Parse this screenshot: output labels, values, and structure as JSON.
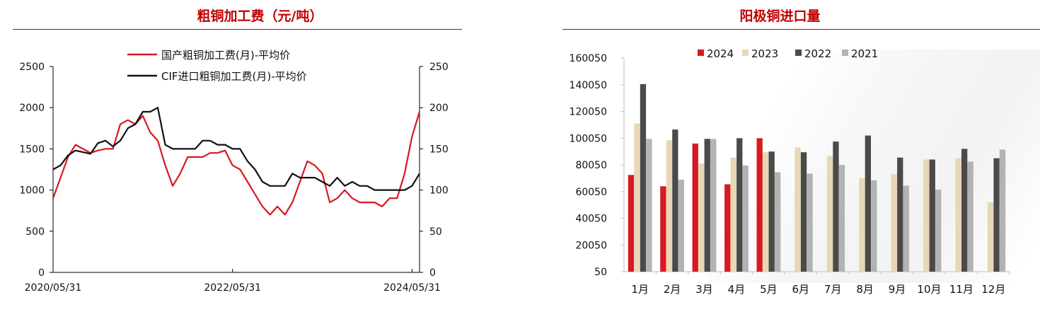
{
  "left": {
    "title": "粗铜加工费（元/吨）",
    "legend": [
      "国产粗铜加工费(月)-平均价",
      "CIF进口粗铜加工费(月)-平均价"
    ],
    "colors": {
      "domestic": "#d71920",
      "cif": "#111111"
    }
  },
  "right": {
    "title": "阳极铜进口量",
    "colors": {
      "2024": "#d71920",
      "2023": "#e8d7b5",
      "2022": "#4a4a4a",
      "2021": "#b3b3b3"
    }
  },
  "chart_data": [
    {
      "type": "line",
      "title": "粗铜加工费（元/吨）",
      "xlabels": [
        "2020/05/31",
        "2022/05/31",
        "2024/05/31"
      ],
      "x": [
        "2020/05",
        "2020/06",
        "2020/07",
        "2020/08",
        "2020/09",
        "2020/10",
        "2020/11",
        "2020/12",
        "2021/01",
        "2021/02",
        "2021/03",
        "2021/04",
        "2021/05",
        "2021/06",
        "2021/07",
        "2021/08",
        "2021/09",
        "2021/10",
        "2021/11",
        "2021/12",
        "2022/01",
        "2022/02",
        "2022/03",
        "2022/04",
        "2022/05",
        "2022/06",
        "2022/07",
        "2022/08",
        "2022/09",
        "2022/10",
        "2022/11",
        "2022/12",
        "2023/01",
        "2023/02",
        "2023/03",
        "2023/04",
        "2023/05",
        "2023/06",
        "2023/07",
        "2023/08",
        "2023/09",
        "2023/10",
        "2023/11",
        "2023/12",
        "2024/01",
        "2024/02",
        "2024/03",
        "2024/04",
        "2024/05",
        "2024/06"
      ],
      "ylim_left": [
        0,
        2500
      ],
      "yticks_left": [
        0,
        500,
        1000,
        1500,
        2000,
        2500
      ],
      "ylim_right": [
        0,
        250
      ],
      "yticks_right": [
        0,
        50,
        100,
        150,
        200,
        250
      ],
      "series": [
        {
          "name": "国产粗铜加工费(月)-平均价",
          "axis": "left",
          "values": [
            900,
            1150,
            1400,
            1550,
            1500,
            1450,
            1480,
            1500,
            1500,
            1800,
            1850,
            1800,
            1900,
            1700,
            1600,
            1300,
            1050,
            1200,
            1400,
            1400,
            1400,
            1450,
            1450,
            1480,
            1300,
            1250,
            1100,
            950,
            800,
            700,
            800,
            700,
            850,
            1100,
            1350,
            1300,
            1200,
            850,
            900,
            1000,
            900,
            850,
            850,
            850,
            800,
            900,
            900,
            1200,
            1650,
            1950
          ]
        },
        {
          "name": "CIF进口粗铜加工费(月)-平均价",
          "axis": "right",
          "values": [
            125,
            130,
            142,
            148,
            146,
            144,
            157,
            160,
            153,
            160,
            175,
            180,
            195,
            195,
            200,
            155,
            150,
            150,
            150,
            150,
            160,
            160,
            155,
            155,
            150,
            150,
            135,
            125,
            110,
            105,
            105,
            105,
            120,
            115,
            115,
            115,
            110,
            105,
            115,
            105,
            110,
            105,
            105,
            100,
            100,
            100,
            100,
            100,
            105,
            120
          ]
        }
      ]
    },
    {
      "type": "bar",
      "title": "阳极铜进口量",
      "categories": [
        "1月",
        "2月",
        "3月",
        "4月",
        "5月",
        "6月",
        "7月",
        "8月",
        "9月",
        "10月",
        "11月",
        "12月"
      ],
      "ylim": [
        50,
        160050
      ],
      "yticks": [
        50,
        20050,
        40050,
        60050,
        80050,
        100050,
        120050,
        140050,
        160050
      ],
      "series": [
        {
          "name": "2024",
          "values": [
            72500,
            64000,
            96000,
            65500,
            100000,
            null,
            null,
            null,
            null,
            null,
            null,
            null
          ]
        },
        {
          "name": "2023",
          "values": [
            111000,
            98500,
            81000,
            85500,
            89500,
            93000,
            86500,
            70000,
            73000,
            84000,
            85000,
            52000
          ]
        },
        {
          "name": "2022",
          "values": [
            140500,
            106500,
            99500,
            100000,
            90000,
            89500,
            97500,
            102000,
            85500,
            84000,
            92000,
            85000
          ]
        },
        {
          "name": "2021",
          "values": [
            99500,
            69000,
            99500,
            79500,
            74500,
            73500,
            80000,
            68500,
            64500,
            61500,
            82500,
            91500
          ]
        }
      ]
    }
  ]
}
